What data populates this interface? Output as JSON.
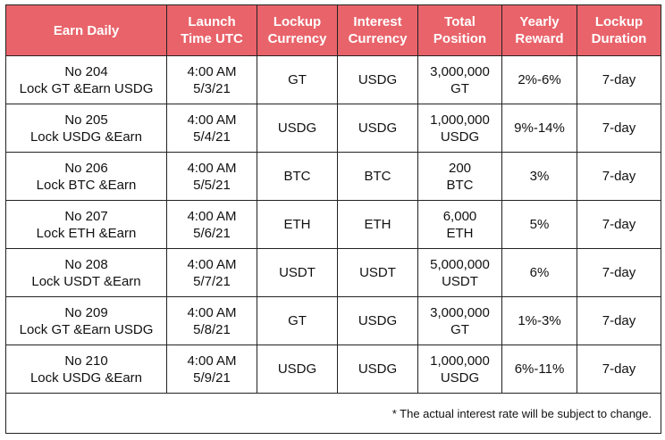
{
  "headers": [
    {
      "l1": "Earn Daily",
      "l2": ""
    },
    {
      "l1": "Launch",
      "l2": "Time UTC"
    },
    {
      "l1": "Lockup",
      "l2": "Currency"
    },
    {
      "l1": "Interest",
      "l2": "Currency"
    },
    {
      "l1": "Total",
      "l2": "Position"
    },
    {
      "l1": "Yearly",
      "l2": "Reward"
    },
    {
      "l1": "Lockup",
      "l2": "Duration"
    }
  ],
  "rows": [
    {
      "name_l1": "No 204",
      "name_l2": "Lock GT &Earn USDG",
      "time_l1": "4:00 AM",
      "time_l2": "5/3/21",
      "lockup_currency": "GT",
      "interest_currency": "USDG",
      "position_l1": "3,000,000",
      "position_l2": "GT",
      "reward": "2%-6%",
      "duration": "7-day"
    },
    {
      "name_l1": "No 205",
      "name_l2": "Lock USDG &Earn",
      "time_l1": "4:00 AM",
      "time_l2": "5/4/21",
      "lockup_currency": "USDG",
      "interest_currency": "USDG",
      "position_l1": "1,000,000",
      "position_l2": "USDG",
      "reward": "9%-14%",
      "duration": "7-day"
    },
    {
      "name_l1": "No 206",
      "name_l2": "Lock BTC &Earn",
      "time_l1": "4:00 AM",
      "time_l2": "5/5/21",
      "lockup_currency": "BTC",
      "interest_currency": "BTC",
      "position_l1": "200",
      "position_l2": "BTC",
      "reward": "3%",
      "duration": "7-day"
    },
    {
      "name_l1": "No 207",
      "name_l2": "Lock ETH &Earn",
      "time_l1": "4:00 AM",
      "time_l2": "5/6/21",
      "lockup_currency": "ETH",
      "interest_currency": "ETH",
      "position_l1": "6,000",
      "position_l2": "ETH",
      "reward": "5%",
      "duration": "7-day"
    },
    {
      "name_l1": "No 208",
      "name_l2": "Lock USDT &Earn",
      "time_l1": "4:00 AM",
      "time_l2": "5/7/21",
      "lockup_currency": "USDT",
      "interest_currency": "USDT",
      "position_l1": "5,000,000",
      "position_l2": "USDT",
      "reward": "6%",
      "duration": "7-day"
    },
    {
      "name_l1": "No 209",
      "name_l2": "Lock GT &Earn USDG",
      "time_l1": "4:00 AM",
      "time_l2": "5/8/21",
      "lockup_currency": "GT",
      "interest_currency": "USDG",
      "position_l1": "3,000,000",
      "position_l2": "GT",
      "reward": "1%-3%",
      "duration": "7-day"
    },
    {
      "name_l1": "No 210",
      "name_l2": "Lock USDG &Earn",
      "time_l1": "4:00 AM",
      "time_l2": "5/9/21",
      "lockup_currency": "USDG",
      "interest_currency": "USDG",
      "position_l1": "1,000,000",
      "position_l2": "USDG",
      "reward": "6%-11%",
      "duration": "7-day"
    }
  ],
  "footnote": "* The actual interest rate will be subject to change.",
  "colors": {
    "header_bg": "#e9636a",
    "header_text": "#ffffff",
    "border": "#222222"
  }
}
